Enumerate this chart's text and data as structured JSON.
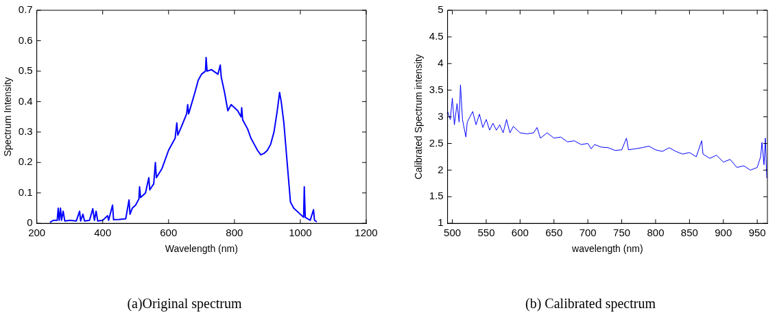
{
  "chart_data": [
    {
      "type": "line",
      "title": "(a)Original spectrum",
      "xlabel": "Wavelength (nm)",
      "ylabel": "Spectrum Intensity",
      "xlim": [
        200,
        1200
      ],
      "xticks": [
        200,
        400,
        600,
        800,
        1000,
        1200
      ],
      "ylim": [
        0,
        0.7
      ],
      "yticks": [
        0,
        0.1,
        0.2,
        0.3,
        0.4,
        0.5,
        0.6,
        0.7
      ],
      "grid": false,
      "legend": false,
      "marker": "none",
      "line_style": "solid",
      "series": [
        {
          "color": "#0000ff",
          "x": [
            240,
            250,
            262,
            265,
            268,
            272,
            275,
            280,
            285,
            300,
            320,
            330,
            333,
            340,
            345,
            360,
            370,
            375,
            380,
            385,
            400,
            415,
            418,
            430,
            433,
            450,
            470,
            480,
            483,
            490,
            500,
            510,
            512,
            515,
            530,
            540,
            543,
            555,
            560,
            563,
            580,
            600,
            620,
            625,
            628,
            640,
            655,
            658,
            661,
            680,
            690,
            700,
            712,
            714,
            717,
            730,
            750,
            757,
            760,
            770,
            780,
            790,
            800,
            810,
            820,
            822,
            825,
            840,
            850,
            860,
            870,
            880,
            890,
            900,
            910,
            920,
            930,
            937,
            942,
            950,
            960,
            970,
            980,
            1000,
            1010,
            1012,
            1015,
            1030,
            1040,
            1043,
            1050
          ],
          "values": [
            0.003,
            0.01,
            0.01,
            0.05,
            0.01,
            0.05,
            0.01,
            0.04,
            0.008,
            0.01,
            0.008,
            0.04,
            0.008,
            0.03,
            0.008,
            0.01,
            0.048,
            0.01,
            0.04,
            0.008,
            0.01,
            0.025,
            0.01,
            0.06,
            0.012,
            0.013,
            0.015,
            0.077,
            0.03,
            0.05,
            0.06,
            0.08,
            0.12,
            0.085,
            0.1,
            0.15,
            0.11,
            0.13,
            0.2,
            0.15,
            0.18,
            0.24,
            0.28,
            0.33,
            0.29,
            0.32,
            0.36,
            0.39,
            0.36,
            0.43,
            0.47,
            0.49,
            0.5,
            0.545,
            0.5,
            0.505,
            0.49,
            0.52,
            0.48,
            0.43,
            0.37,
            0.39,
            0.38,
            0.37,
            0.35,
            0.38,
            0.34,
            0.31,
            0.28,
            0.26,
            0.24,
            0.225,
            0.23,
            0.24,
            0.26,
            0.3,
            0.37,
            0.43,
            0.4,
            0.33,
            0.2,
            0.07,
            0.05,
            0.03,
            0.02,
            0.12,
            0.02,
            0.01,
            0.045,
            0.01,
            0.005
          ]
        }
      ]
    },
    {
      "type": "line",
      "title": "(b) Calibrated spectrum",
      "xlabel": "wavelength (nm)",
      "ylabel": "Calibrated Spectrum intensity",
      "xlim": [
        493,
        965
      ],
      "xticks": [
        500,
        550,
        600,
        650,
        700,
        750,
        800,
        850,
        900,
        950
      ],
      "ylim": [
        1,
        5
      ],
      "yticks": [
        1,
        1.5,
        2,
        2.5,
        3,
        3.5,
        4,
        4.5,
        5
      ],
      "grid": false,
      "legend": false,
      "marker": "none",
      "line_style": "solid",
      "series": [
        {
          "color": "#0000ff",
          "x": [
            493,
            497,
            500,
            503,
            507,
            510,
            512,
            515,
            520,
            522,
            530,
            535,
            540,
            545,
            550,
            555,
            560,
            565,
            570,
            575,
            580,
            585,
            590,
            600,
            610,
            620,
            625,
            630,
            640,
            650,
            660,
            670,
            680,
            690,
            700,
            705,
            710,
            720,
            730,
            740,
            750,
            757,
            760,
            770,
            780,
            790,
            800,
            810,
            820,
            830,
            840,
            850,
            860,
            868,
            870,
            880,
            890,
            900,
            910,
            920,
            930,
            940,
            950,
            955,
            957,
            960,
            962,
            964
          ],
          "values": [
            3.1,
            2.95,
            3.35,
            2.85,
            3.25,
            2.9,
            3.6,
            2.95,
            2.62,
            2.9,
            3.1,
            2.85,
            3.05,
            2.8,
            2.95,
            2.75,
            2.88,
            2.75,
            2.85,
            2.7,
            2.95,
            2.7,
            2.82,
            2.7,
            2.68,
            2.7,
            2.8,
            2.6,
            2.7,
            2.6,
            2.62,
            2.53,
            2.55,
            2.48,
            2.5,
            2.4,
            2.48,
            2.43,
            2.42,
            2.37,
            2.38,
            2.6,
            2.38,
            2.4,
            2.42,
            2.45,
            2.38,
            2.35,
            2.42,
            2.35,
            2.3,
            2.33,
            2.25,
            2.55,
            2.3,
            2.22,
            2.28,
            2.15,
            2.2,
            2.05,
            2.08,
            2.0,
            2.05,
            2.25,
            2.52,
            2.1,
            2.6,
            1.85
          ]
        }
      ]
    }
  ]
}
